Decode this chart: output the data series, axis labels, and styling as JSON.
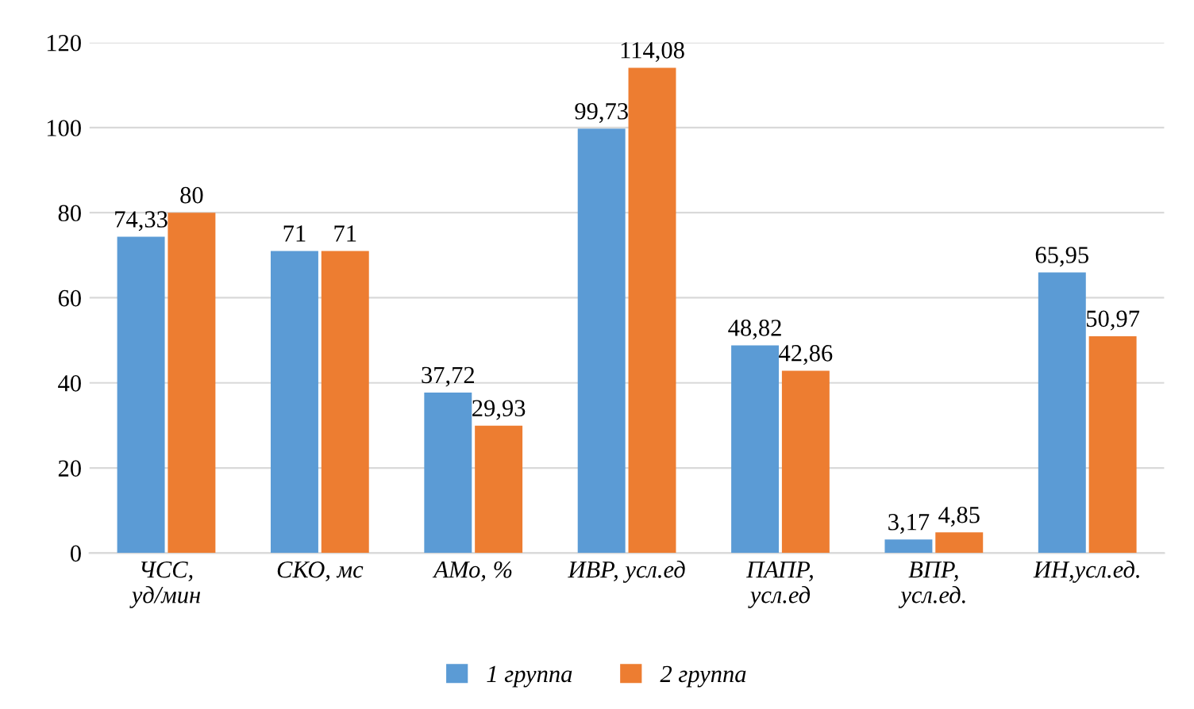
{
  "chart_data": {
    "type": "bar",
    "categories": [
      "ЧСС,\nуд/мин",
      "СКО, мс",
      "АМо, %",
      "ИВР, усл.ед",
      "ПАПР,\nусл.ед",
      "ВПР,\nусл.ед.",
      "ИН,усл.ед."
    ],
    "series": [
      {
        "name": "1 группа",
        "color": "#5b9bd5",
        "values": [
          74.33,
          71,
          37.72,
          99.73,
          48.82,
          3.17,
          65.95
        ],
        "value_labels": [
          "74,33",
          "71",
          "37,72",
          "99,73",
          "48,82",
          "3,17",
          "65,95"
        ]
      },
      {
        "name": "2 группа",
        "color": "#ed7d31",
        "values": [
          80,
          71,
          29.93,
          114.08,
          42.86,
          4.85,
          50.97
        ],
        "value_labels": [
          "80",
          "71",
          "29,93",
          "114,08",
          "42,86",
          "4,85",
          "50,97"
        ]
      }
    ],
    "ylim": [
      0,
      120
    ],
    "yticks": [
      0,
      20,
      40,
      60,
      80,
      100,
      120
    ],
    "grid": "y",
    "legend": "bottom"
  }
}
